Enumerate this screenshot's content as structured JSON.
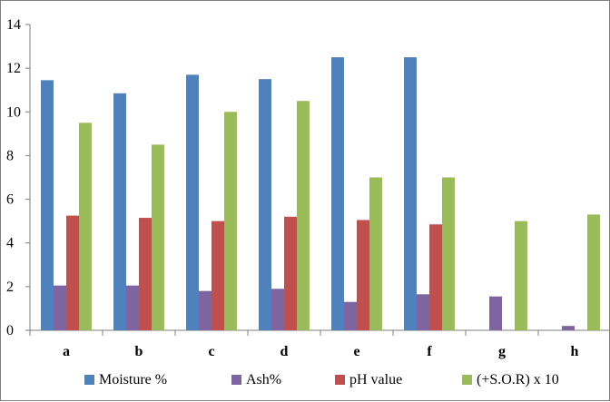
{
  "chart_data": {
    "type": "bar",
    "categories": [
      "a",
      "b",
      "c",
      "d",
      "e",
      "f",
      "g",
      "h"
    ],
    "series": [
      {
        "name": "Moisture %",
        "color": "#4F81BD",
        "values": [
          11.45,
          10.85,
          11.7,
          11.5,
          12.5,
          12.5,
          null,
          null
        ]
      },
      {
        "name": "Ash%",
        "color": "#8064A2",
        "values": [
          2.05,
          2.05,
          1.8,
          1.9,
          1.3,
          1.65,
          1.55,
          0.2
        ]
      },
      {
        "name": "pH value",
        "color": "#C0504D",
        "values": [
          5.25,
          5.15,
          5.0,
          5.2,
          5.05,
          4.85,
          null,
          null
        ]
      },
      {
        "name": "(+S.O.R) x 10",
        "color": "#9BBB59",
        "values": [
          9.5,
          8.5,
          10.0,
          10.5,
          7.0,
          7.0,
          5.0,
          5.3
        ]
      }
    ],
    "bar_order": [
      "Moisture %",
      "Ash%",
      "pH value",
      "(+S.O.R) x 10"
    ],
    "yticks": [
      "0",
      "2",
      "4",
      "6",
      "8",
      "10",
      "12",
      "14"
    ],
    "ylim": [
      0,
      14
    ],
    "grid": false,
    "legend_position": "bottom",
    "title": "",
    "xlabel": "",
    "ylabel": ""
  }
}
